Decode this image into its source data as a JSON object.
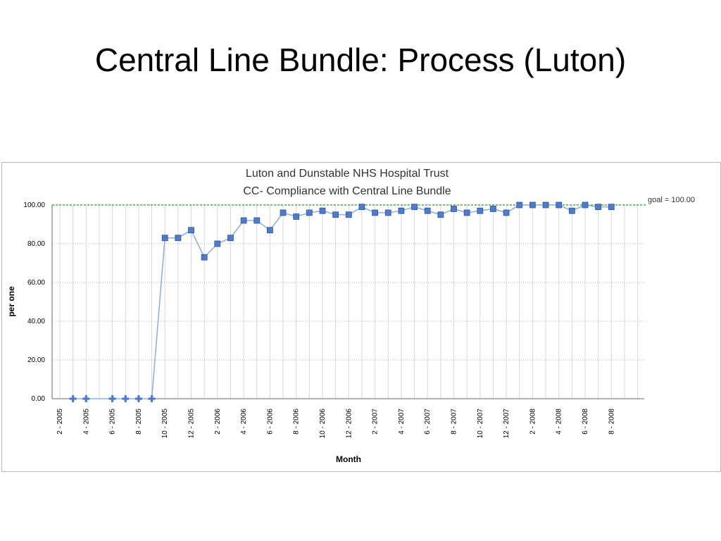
{
  "slide": {
    "title": "Central Line Bundle: Process (Luton)"
  },
  "chart_data": {
    "type": "line",
    "title_lines": [
      "Luton and Dunstable NHS Hospital Trust",
      "CC- Compliance with Central Line Bundle"
    ],
    "xlabel": "Month",
    "ylabel": "per one",
    "ylim": [
      0,
      100
    ],
    "yticks": [
      "0.00",
      "20.00",
      "40.00",
      "60.00",
      "80.00",
      "100.00"
    ],
    "xtick_labels": [
      "2 - 2005",
      "4 - 2005",
      "6 - 2005",
      "8 - 2005",
      "10 - 2005",
      "12 - 2005",
      "2 - 2006",
      "4 - 2006",
      "6 - 2006",
      "8 - 2006",
      "10 - 2006",
      "12 - 2006",
      "2 - 2007",
      "4 - 2007",
      "6 - 2007",
      "8 - 2007",
      "10 - 2007",
      "12 - 2007",
      "2 - 2008",
      "4 - 2008",
      "6 - 2008",
      "8 - 2008"
    ],
    "goal": {
      "value": 100,
      "label": "goal = 100.00",
      "color": "#2a9a2a"
    },
    "grid": true,
    "line_color": "#8fb0e0",
    "marker_color": "#4f7cc9",
    "series": [
      {
        "x": [
          "3 - 2005",
          "4 - 2005",
          "6 - 2005",
          "7 - 2005",
          "8 - 2005",
          "9 - 2005",
          "10 - 2005",
          "11 - 2005",
          "12 - 2005",
          "1 - 2006",
          "2 - 2006",
          "3 - 2006",
          "4 - 2006",
          "5 - 2006",
          "6 - 2006",
          "7 - 2006",
          "8 - 2006",
          "9 - 2006",
          "10 - 2006",
          "11 - 2006",
          "12 - 2006",
          "1 - 2007",
          "2 - 2007",
          "3 - 2007",
          "4 - 2007",
          "5 - 2007",
          "6 - 2007",
          "7 - 2007",
          "8 - 2007",
          "9 - 2007",
          "10 - 2007",
          "11 - 2007",
          "12 - 2007",
          "1 - 2008",
          "2 - 2008",
          "3 - 2008",
          "4 - 2008",
          "5 - 2008",
          "6 - 2008",
          "7 - 2008",
          "8 - 2008"
        ],
        "values": [
          0,
          0,
          0,
          0,
          0,
          0,
          83,
          83,
          87,
          73,
          80,
          83,
          92,
          92,
          87,
          96,
          94,
          96,
          97,
          95,
          95,
          99,
          96,
          96,
          97,
          99,
          97,
          95,
          98,
          96,
          97,
          98,
          96,
          100,
          100,
          100,
          100,
          97,
          100,
          99,
          99
        ],
        "markers": [
          "plus",
          "plus",
          "plus",
          "plus",
          "plus",
          "plus",
          "square",
          "square",
          "square",
          "square",
          "square",
          "square",
          "square",
          "square",
          "square",
          "square",
          "square",
          "square",
          "square",
          "square",
          "square",
          "square",
          "square",
          "square",
          "square",
          "square",
          "square",
          "square",
          "square",
          "square",
          "square",
          "square",
          "square",
          "square",
          "square",
          "square",
          "square",
          "square",
          "square",
          "square",
          "square"
        ]
      }
    ]
  }
}
